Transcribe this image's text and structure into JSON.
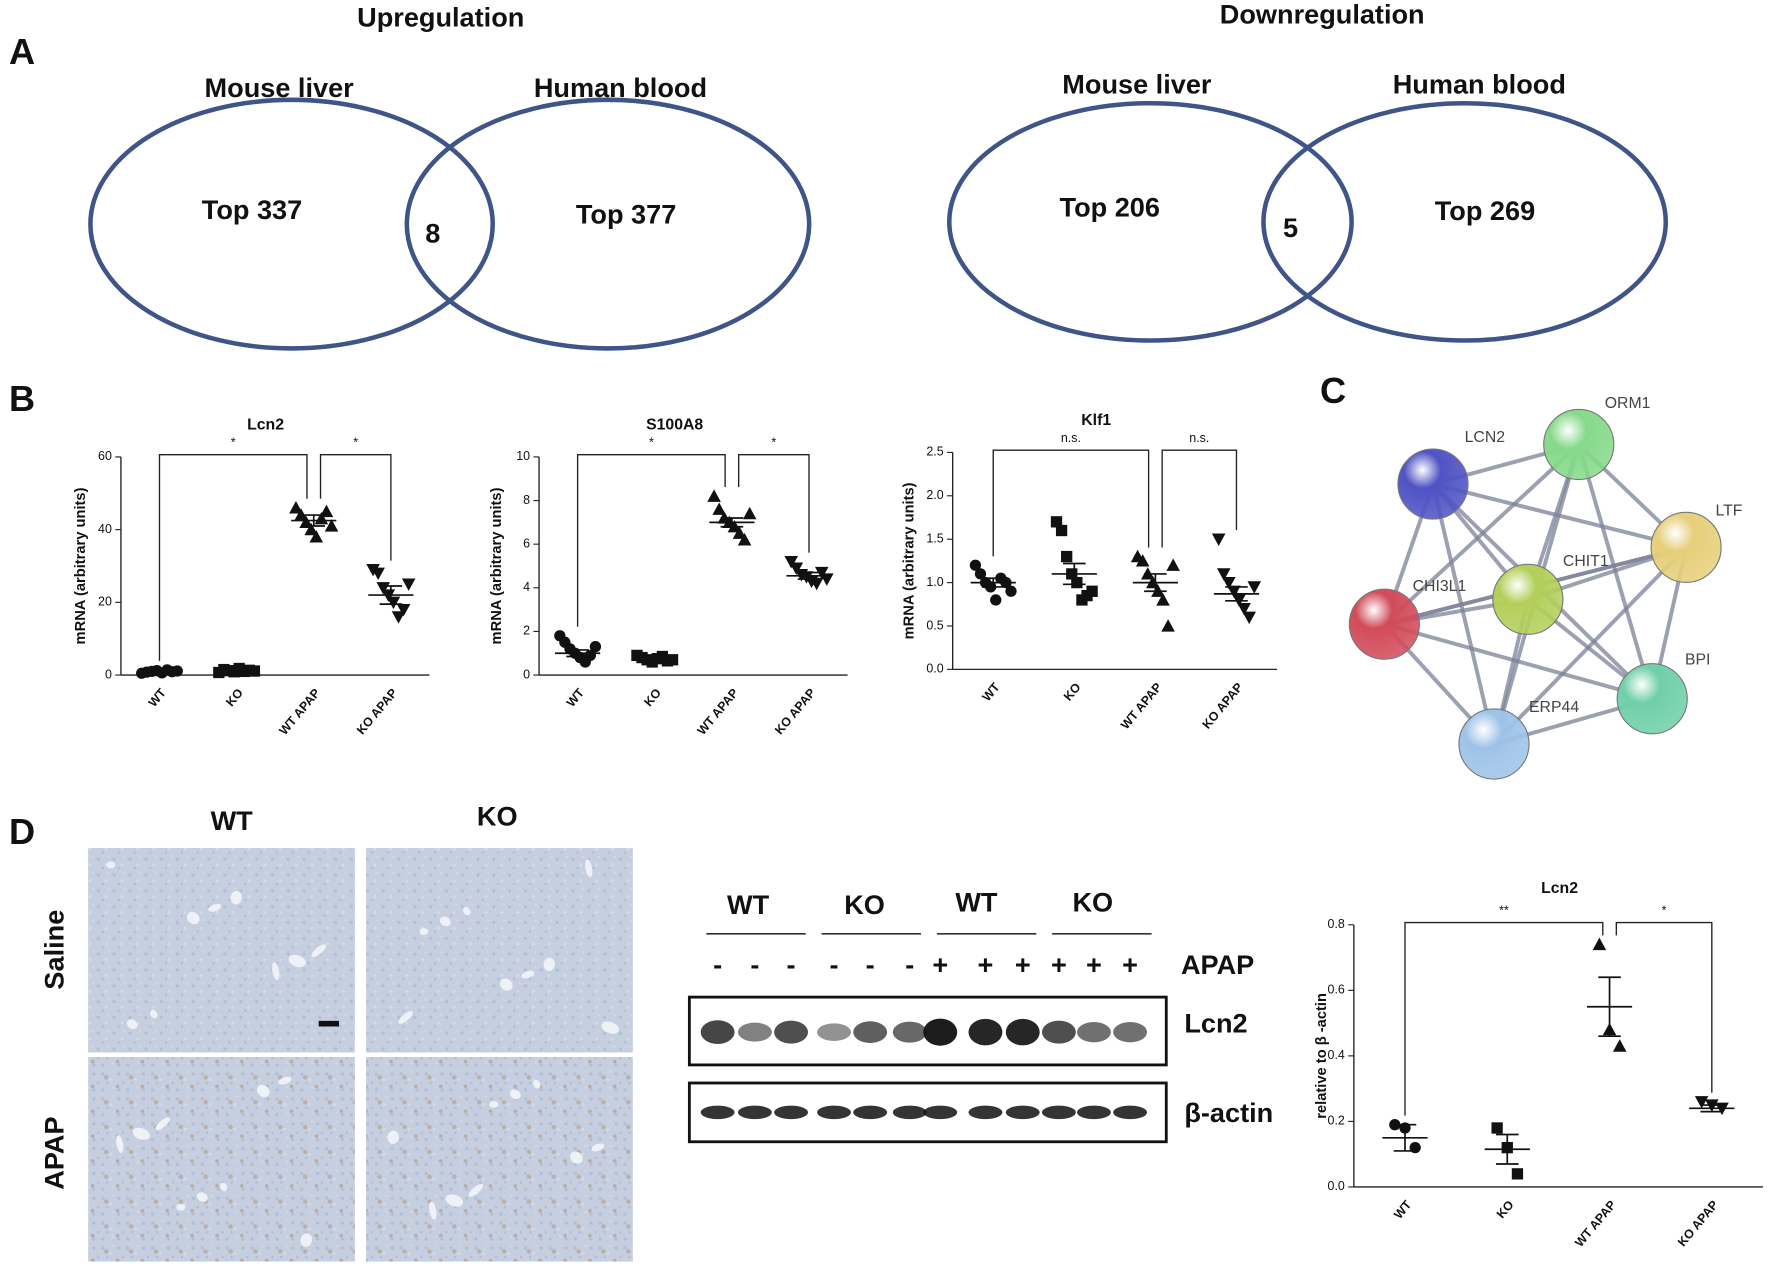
{
  "panel_labels": [
    "A",
    "B",
    "C",
    "D"
  ],
  "venn": [
    {
      "title": "Upregulation",
      "sets": [
        "Mouse liver",
        "Human blood"
      ],
      "left": "Top 337",
      "overlap": 8,
      "right": "Top 377"
    },
    {
      "title": "Downregulation",
      "sets": [
        "Mouse liver",
        "Human blood"
      ],
      "left": "Top 206",
      "overlap": 5,
      "right": "Top 269"
    }
  ],
  "network": {
    "nodes": [
      {
        "label": "LCN2",
        "color": "#4f53c4"
      },
      {
        "label": "ORM1",
        "color": "#86d98a"
      },
      {
        "label": "LTF",
        "color": "#e6cf7a"
      },
      {
        "label": "CHIT1",
        "color": "#b3cf5a"
      },
      {
        "label": "CHI3L1",
        "color": "#d24b5a"
      },
      {
        "label": "BPI",
        "color": "#6fcfa8"
      },
      {
        "label": "ERP44",
        "color": "#9ec3e8"
      }
    ]
  },
  "histology": {
    "columns": [
      "WT",
      "KO"
    ],
    "rows": [
      "Saline",
      "APAP"
    ]
  },
  "blot": {
    "groups": [
      "WT",
      "KO",
      "WT",
      "KO"
    ],
    "treatment": [
      "-",
      "-",
      "-",
      "-",
      "-",
      "-",
      "+",
      "+",
      "+",
      "+",
      "+",
      "+"
    ],
    "treatment_label": "APAP",
    "rows": [
      "Lcn2",
      "β-actin"
    ]
  },
  "chart_data": [
    {
      "type": "dot",
      "title": "Lcn2",
      "ylabel": "mRNA (arbitrary units)",
      "categories": [
        "WT",
        "KO",
        "WT APAP",
        "KO APAP"
      ],
      "markers": [
        "circle",
        "square",
        "triangle",
        "triangle-down"
      ],
      "color": "#111111",
      "values": [
        1,
        1.2,
        42.5,
        22
      ],
      "errors": [
        0.3,
        0.3,
        1.5,
        2.5
      ],
      "points": [
        [
          0.5,
          0.8,
          1,
          1.2,
          0.6,
          1.4,
          0.9,
          1.1
        ],
        [
          0.7,
          1.5,
          1.2,
          0.9,
          1.8,
          1,
          1.3,
          1.1
        ],
        [
          46,
          44,
          42,
          40,
          38,
          43,
          45,
          41
        ],
        [
          29,
          28,
          24,
          22,
          20,
          16,
          18,
          25
        ]
      ],
      "ylim": [
        0,
        60
      ],
      "yticks": [
        0,
        20,
        40,
        60
      ],
      "brackets": [
        {
          "from": 0,
          "to": 2,
          "label": "*"
        },
        {
          "from": 2,
          "to": 3,
          "label": "*"
        }
      ]
    },
    {
      "type": "dot",
      "title": "S100A8",
      "ylabel": "mRNA (arbitrary units)",
      "categories": [
        "WT",
        "KO",
        "WT APAP",
        "KO APAP"
      ],
      "markers": [
        "circle",
        "square",
        "triangle",
        "triangle-down"
      ],
      "color": "#111111",
      "values": [
        1,
        0.75,
        7,
        4.55
      ],
      "errors": [
        0.15,
        0.08,
        0.2,
        0.15
      ],
      "points": [
        [
          1.8,
          1.5,
          1.2,
          1,
          0.8,
          0.6,
          0.9,
          1.3
        ],
        [
          0.9,
          0.8,
          0.7,
          0.6,
          0.75,
          0.85,
          0.65,
          0.7
        ],
        [
          8.2,
          7.6,
          7.2,
          7,
          6.8,
          6.5,
          6.2,
          7.4
        ],
        [
          5.2,
          4.9,
          4.6,
          4.5,
          4.3,
          4.2,
          4.7,
          4.4
        ]
      ],
      "ylim": [
        0,
        10
      ],
      "yticks": [
        0,
        2,
        4,
        6,
        8,
        10
      ],
      "brackets": [
        {
          "from": 0,
          "to": 2,
          "label": "*"
        },
        {
          "from": 2,
          "to": 3,
          "label": "*"
        }
      ]
    },
    {
      "type": "dot",
      "title": "Klf1",
      "ylabel": "mRNA (arbitrary units)",
      "categories": [
        "WT",
        "KO",
        "WT APAP",
        "KO APAP"
      ],
      "markers": [
        "circle",
        "square",
        "triangle",
        "triangle-down"
      ],
      "color": "#111111",
      "values": [
        1,
        1.1,
        1,
        0.87
      ],
      "errors": [
        0.05,
        0.12,
        0.1,
        0.08
      ],
      "points": [
        [
          1.2,
          1.1,
          1,
          0.95,
          0.8,
          1.05,
          1,
          0.9
        ],
        [
          1.7,
          1.6,
          1.3,
          1.1,
          1,
          0.8,
          0.85,
          0.9
        ],
        [
          1.3,
          1.25,
          1.1,
          1,
          0.9,
          0.8,
          0.5,
          1.2
        ],
        [
          1.5,
          1.1,
          1,
          0.9,
          0.8,
          0.7,
          0.6,
          0.95
        ]
      ],
      "ylim": [
        0,
        2.5
      ],
      "yticks": [
        {
          "value": 0,
          "label": "0.0"
        },
        0.5,
        {
          "value": 1,
          "label": "1.0"
        },
        1.5,
        {
          "value": 2,
          "label": "2.0"
        },
        2.5
      ],
      "brackets": [
        {
          "from": 0,
          "to": 2,
          "label": "n.s."
        },
        {
          "from": 2,
          "to": 3,
          "label": "n.s."
        }
      ]
    },
    {
      "type": "dot",
      "title": "Lcn2",
      "ylabel": "relative to β -actin",
      "categories": [
        "WT",
        "KO",
        "WT APAP",
        "KO APAP"
      ],
      "markers": [
        "circle",
        "square",
        "triangle",
        "triangle-down"
      ],
      "color": "#111111",
      "values": [
        0.15,
        0.115,
        0.55,
        0.24
      ],
      "errors": [
        0.04,
        0.045,
        0.09,
        0.01
      ],
      "points": [
        [
          0.19,
          0.18,
          0.12
        ],
        [
          0.18,
          0.12,
          0.04
        ],
        [
          0.74,
          0.48,
          0.43
        ],
        [
          0.26,
          0.25,
          0.24
        ]
      ],
      "ylim": [
        0,
        0.8
      ],
      "yticks": [
        {
          "value": 0,
          "label": "0.0"
        },
        0.2,
        0.4,
        0.6,
        0.8
      ],
      "brackets": [
        {
          "from": 0,
          "to": 2,
          "label": "**"
        },
        {
          "from": 2,
          "to": 3,
          "label": "*"
        }
      ]
    }
  ]
}
